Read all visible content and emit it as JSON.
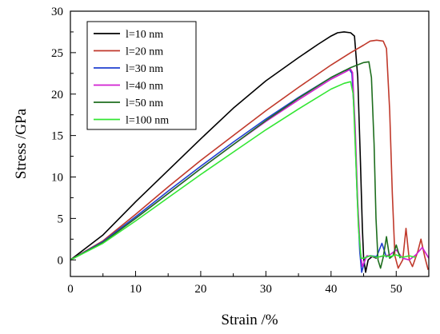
{
  "chart_data": {
    "type": "line",
    "xlabel": "Strain  /%",
    "ylabel": "Stress  /GPa",
    "xlim": [
      0,
      55
    ],
    "ylim": [
      -2,
      30
    ],
    "x_ticks": [
      0,
      10,
      20,
      30,
      40,
      50
    ],
    "y_ticks": [
      0,
      5,
      10,
      15,
      20,
      25,
      30
    ],
    "legend_position": "top-left",
    "grid": false,
    "series": [
      {
        "name": "l=10 nm",
        "color": "#000000",
        "points": [
          [
            0,
            0
          ],
          [
            5,
            3.0
          ],
          [
            10,
            7.0
          ],
          [
            15,
            10.8
          ],
          [
            20,
            14.6
          ],
          [
            25,
            18.3
          ],
          [
            30,
            21.6
          ],
          [
            35,
            24.4
          ],
          [
            38,
            26.0
          ],
          [
            40,
            27.0
          ],
          [
            41,
            27.4
          ],
          [
            42,
            27.5
          ],
          [
            43,
            27.4
          ],
          [
            43.6,
            27.0
          ],
          [
            44.1,
            22
          ],
          [
            44.5,
            12
          ],
          [
            44.8,
            4
          ],
          [
            45.0,
            0.3
          ],
          [
            45.3,
            -1.5
          ],
          [
            45.7,
            0
          ],
          [
            46.3,
            0.4
          ],
          [
            47,
            0.2
          ]
        ]
      },
      {
        "name": "l=20 nm",
        "color": "#c0392b",
        "points": [
          [
            0,
            0
          ],
          [
            5,
            2.3
          ],
          [
            10,
            5.5
          ],
          [
            15,
            8.8
          ],
          [
            20,
            12.0
          ],
          [
            25,
            15.0
          ],
          [
            30,
            18.0
          ],
          [
            35,
            20.8
          ],
          [
            40,
            23.5
          ],
          [
            43,
            25.0
          ],
          [
            45,
            25.9
          ],
          [
            46,
            26.4
          ],
          [
            47,
            26.5
          ],
          [
            48,
            26.4
          ],
          [
            48.5,
            25.5
          ],
          [
            49.0,
            18
          ],
          [
            49.4,
            8
          ],
          [
            49.8,
            0.5
          ],
          [
            50.3,
            -1.0
          ],
          [
            51,
            0
          ],
          [
            51.5,
            3.8
          ],
          [
            52,
            0
          ],
          [
            52.5,
            -0.8
          ],
          [
            53.3,
            1.0
          ],
          [
            53.8,
            2.5
          ],
          [
            54.4,
            0.3
          ],
          [
            54.9,
            -1.2
          ]
        ]
      },
      {
        "name": "l=30 nm",
        "color": "#1f3fd1",
        "points": [
          [
            0,
            0
          ],
          [
            5,
            2.2
          ],
          [
            10,
            5.2
          ],
          [
            15,
            8.3
          ],
          [
            20,
            11.3
          ],
          [
            25,
            14.2
          ],
          [
            30,
            17.0
          ],
          [
            35,
            19.6
          ],
          [
            40,
            22.0
          ],
          [
            42,
            22.8
          ],
          [
            42.8,
            23.0
          ],
          [
            43.2,
            22.5
          ],
          [
            43.6,
            17
          ],
          [
            44,
            8
          ],
          [
            44.4,
            1
          ],
          [
            44.7,
            -1.5
          ],
          [
            45.3,
            0.3
          ],
          [
            46,
            0.5
          ],
          [
            47,
            0.4
          ],
          [
            47.8,
            2.0
          ],
          [
            48.5,
            0.3
          ]
        ]
      },
      {
        "name": "l=40 nm",
        "color": "#d11fd1",
        "points": [
          [
            0,
            0
          ],
          [
            5,
            2.1
          ],
          [
            10,
            5.0
          ],
          [
            15,
            8.0
          ],
          [
            20,
            11.0
          ],
          [
            25,
            13.9
          ],
          [
            30,
            16.7
          ],
          [
            35,
            19.3
          ],
          [
            40,
            21.8
          ],
          [
            42,
            22.6
          ],
          [
            43,
            23.0
          ],
          [
            43.3,
            22.6
          ],
          [
            43.7,
            16
          ],
          [
            44.1,
            7
          ],
          [
            44.5,
            1
          ],
          [
            44.8,
            -0.8
          ],
          [
            45.5,
            0.5
          ],
          [
            47,
            0.3
          ],
          [
            49,
            0.6
          ],
          [
            50,
            1.2
          ],
          [
            51,
            0.2
          ],
          [
            52,
            0
          ],
          [
            53,
            0.6
          ],
          [
            54,
            1.5
          ],
          [
            55,
            0.2
          ]
        ]
      },
      {
        "name": "l=50 nm",
        "color": "#1e6e1e",
        "points": [
          [
            0,
            0
          ],
          [
            5,
            2.1
          ],
          [
            10,
            5.0
          ],
          [
            15,
            8.0
          ],
          [
            20,
            11.0
          ],
          [
            25,
            13.9
          ],
          [
            30,
            16.8
          ],
          [
            35,
            19.5
          ],
          [
            40,
            22.0
          ],
          [
            43,
            23.2
          ],
          [
            45,
            23.8
          ],
          [
            45.8,
            23.9
          ],
          [
            46.2,
            22
          ],
          [
            46.6,
            14
          ],
          [
            46.9,
            5
          ],
          [
            47.2,
            0
          ],
          [
            47.6,
            -1
          ],
          [
            48,
            0.3
          ],
          [
            48.5,
            2.8
          ],
          [
            49,
            0.2
          ],
          [
            49.5,
            0.5
          ],
          [
            50,
            1.8
          ],
          [
            50.6,
            0.2
          ]
        ]
      },
      {
        "name": "l=100 nm",
        "color": "#33e633",
        "points": [
          [
            0,
            0
          ],
          [
            5,
            2.0
          ],
          [
            10,
            4.7
          ],
          [
            15,
            7.5
          ],
          [
            20,
            10.3
          ],
          [
            25,
            13.0
          ],
          [
            30,
            15.7
          ],
          [
            35,
            18.2
          ],
          [
            40,
            20.6
          ],
          [
            42,
            21.3
          ],
          [
            43,
            21.5
          ],
          [
            43.4,
            20
          ],
          [
            43.8,
            12
          ],
          [
            44.2,
            4
          ],
          [
            44.6,
            0.2
          ],
          [
            45,
            0.2
          ],
          [
            46,
            0.5
          ],
          [
            47,
            0.3
          ],
          [
            48,
            0.5
          ],
          [
            49,
            0.4
          ],
          [
            50,
            0.6
          ],
          [
            51,
            0.3
          ],
          [
            52,
            0.5
          ],
          [
            53,
            0.3
          ]
        ]
      }
    ]
  }
}
